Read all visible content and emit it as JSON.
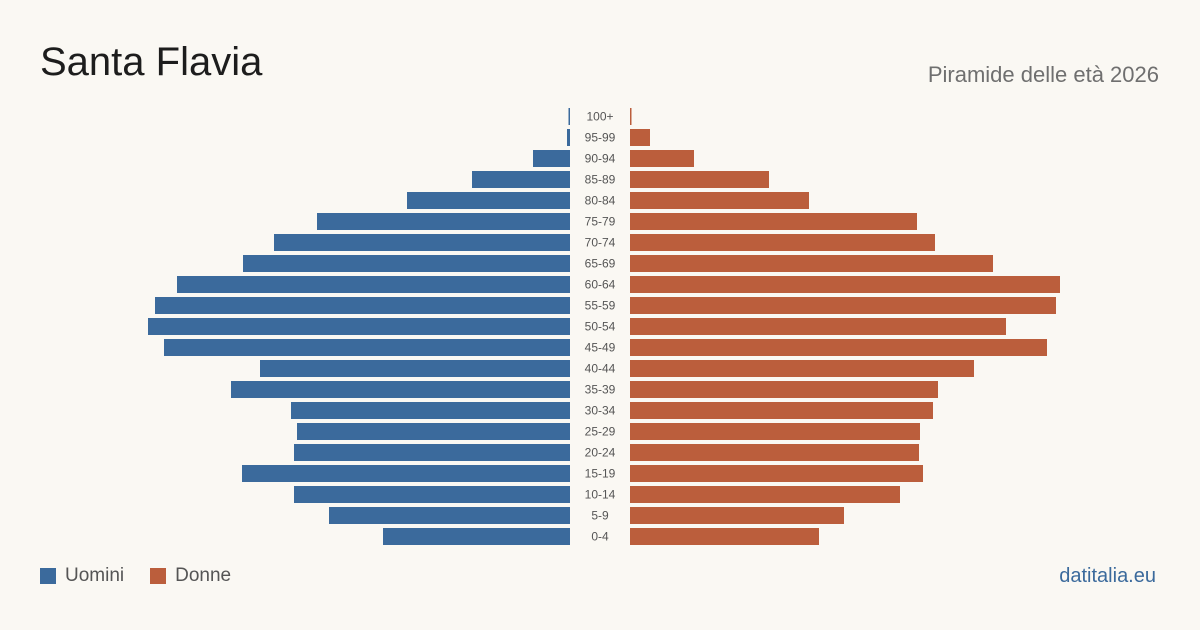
{
  "header": {
    "title": "Santa Flavia",
    "subtitle": "Piramide delle età 2026"
  },
  "legend": {
    "men_label": "Uomini",
    "women_label": "Donne"
  },
  "footer": {
    "site": "datitalia.eu"
  },
  "colors": {
    "men": "#3b6a9c",
    "women": "#bb5e3c"
  },
  "chart_data": {
    "type": "bar",
    "orientation": "horizontal-pyramid",
    "title": "Santa Flavia",
    "subtitle": "Piramide delle età 2026",
    "categories": [
      "100+",
      "95-99",
      "90-94",
      "85-89",
      "80-84",
      "75-79",
      "70-74",
      "65-69",
      "60-64",
      "55-59",
      "50-54",
      "45-49",
      "40-44",
      "35-39",
      "30-34",
      "25-29",
      "20-24",
      "15-19",
      "10-14",
      "5-9",
      "0-4"
    ],
    "series": [
      {
        "name": "Uomini",
        "values": [
          1,
          3,
          37,
          98,
          163,
          253,
          296,
          327,
          393,
          415,
          422,
          406,
          310,
          339,
          279,
          273,
          276,
          328,
          276,
          241,
          187
        ]
      },
      {
        "name": "Donne",
        "values": [
          1,
          20,
          64,
          139,
          179,
          287,
          305,
          363,
          430,
          426,
          376,
          417,
          344,
          308,
          303,
          290,
          289,
          293,
          270,
          214,
          189
        ]
      }
    ],
    "axis_visible": false,
    "grid": false,
    "legend_position": "bottom-left"
  }
}
